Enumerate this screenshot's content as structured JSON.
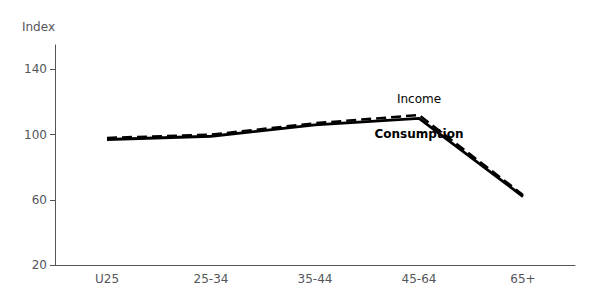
{
  "chart_data": {
    "type": "line",
    "categories": [
      "U25",
      "25-34",
      "35-44",
      "45-64",
      "65+"
    ],
    "series": [
      {
        "name": "Income",
        "color": "#000000",
        "line_style": "dashed",
        "values": [
          98,
          100,
          107,
          112,
          63
        ]
      },
      {
        "name": "Consumption",
        "color": "#000000",
        "line_style": "solid",
        "values": [
          97,
          99,
          106,
          110,
          62
        ]
      }
    ],
    "ylabel": "Index",
    "ylim": [
      20,
      155
    ],
    "yticks": [
      20,
      60,
      100,
      140
    ],
    "grid": false
  }
}
